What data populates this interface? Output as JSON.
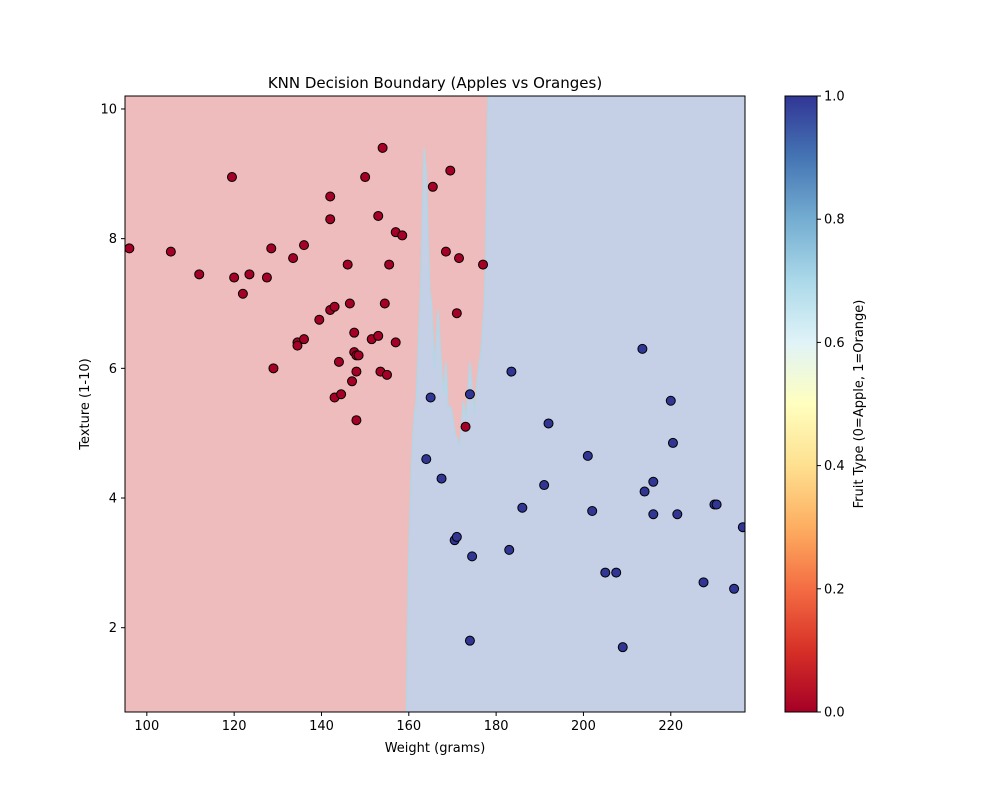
{
  "chart_data": {
    "type": "scatter",
    "title": "KNN Decision Boundary (Apples vs Oranges)",
    "xlabel": "Weight (grams)",
    "ylabel": "Texture (1-10)",
    "xlim": [
      95,
      237
    ],
    "ylim": [
      0.7,
      10.2
    ],
    "x_ticks": [
      100,
      120,
      140,
      160,
      180,
      200,
      220
    ],
    "y_ticks": [
      2,
      4,
      6,
      8,
      10
    ],
    "grid": false,
    "colorbar": {
      "label": "Fruit Type (0=Apple, 1=Orange)",
      "ticks": [
        0.0,
        0.2,
        0.4,
        0.6,
        0.8,
        1.0
      ],
      "tick_labels": [
        "0.0",
        "0.2",
        "0.4",
        "0.6",
        "0.8",
        "1.0"
      ],
      "colormap": "RdYlBu"
    },
    "colors": {
      "apple_point": "#a50026",
      "orange_point": "#313695",
      "apple_region": "#eebcbc",
      "orange_region": "#c5d0e6",
      "edge": "#000000"
    },
    "decision_boundary": {
      "x": [
        159.5,
        159.9,
        160.3,
        160.6,
        161.0,
        161.3,
        161.7,
        162.2,
        162.7,
        163.0,
        163.5,
        164.0,
        164.4,
        164.8,
        165.2,
        165.9,
        166.7,
        167.3,
        168.0,
        168.5,
        169.0,
        169.7,
        170.6,
        171.7,
        172.5,
        173.1,
        174.0,
        175.0,
        175.8,
        176.6,
        177.3,
        177.6,
        177.9,
        178.1,
        178.2
      ],
      "y": [
        0.7,
        2.8,
        3.8,
        4.5,
        5.0,
        5.3,
        5.5,
        6.3,
        7.2,
        8.0,
        9.4,
        9.0,
        8.0,
        7.2,
        7.0,
        6.0,
        6.9,
        6.2,
        5.6,
        6.1,
        5.4,
        5.4,
        5.0,
        4.8,
        5.5,
        5.2,
        6.1,
        5.3,
        5.9,
        6.3,
        7.0,
        7.6,
        9.0,
        10.0,
        10.2
      ]
    },
    "series": [
      {
        "name": "Apple (0)",
        "class": 0,
        "x": [
          96,
          105.5,
          112,
          119.5,
          120,
          122,
          123.5,
          127.5,
          128.5,
          129,
          133.5,
          134.5,
          134.5,
          136,
          136,
          139.5,
          142,
          142,
          142,
          143,
          143,
          144,
          144.5,
          146,
          146.5,
          147,
          147.5,
          147.5,
          148,
          148,
          148,
          148.5,
          150,
          151.5,
          153,
          153,
          153.5,
          154,
          154.5,
          155,
          155.5,
          157,
          157,
          158.5,
          165.5,
          168.5,
          169.5,
          171,
          171.5,
          173,
          177
        ],
        "y": [
          7.85,
          7.8,
          7.45,
          8.95,
          7.4,
          7.15,
          7.45,
          7.4,
          7.85,
          6.0,
          7.7,
          6.4,
          6.35,
          6.45,
          7.9,
          6.75,
          8.65,
          8.3,
          6.9,
          6.95,
          5.55,
          6.1,
          5.6,
          7.6,
          7.0,
          5.8,
          6.55,
          6.25,
          6.2,
          5.95,
          5.2,
          6.2,
          8.95,
          6.45,
          6.5,
          8.35,
          5.95,
          9.4,
          7.0,
          5.9,
          7.6,
          8.1,
          6.4,
          8.05,
          8.8,
          7.8,
          9.05,
          6.85,
          7.7,
          5.1,
          7.6
        ]
      },
      {
        "name": "Orange (1)",
        "class": 1,
        "x": [
          164,
          165,
          167.5,
          170.5,
          171,
          174,
          174,
          174.5,
          183,
          183.5,
          186,
          191,
          192,
          201,
          202,
          205,
          207.5,
          209,
          213.5,
          214,
          216,
          216,
          220,
          220.5,
          221.5,
          227.5,
          230,
          230.5,
          234.5,
          236.5
        ],
        "y": [
          4.6,
          5.55,
          4.3,
          3.35,
          3.4,
          5.6,
          1.8,
          3.1,
          3.2,
          5.95,
          3.85,
          4.2,
          5.15,
          4.65,
          3.8,
          2.85,
          2.85,
          1.7,
          6.3,
          4.1,
          3.75,
          4.25,
          5.5,
          4.85,
          3.75,
          2.7,
          3.9,
          3.9,
          2.6,
          3.55
        ]
      }
    ]
  }
}
